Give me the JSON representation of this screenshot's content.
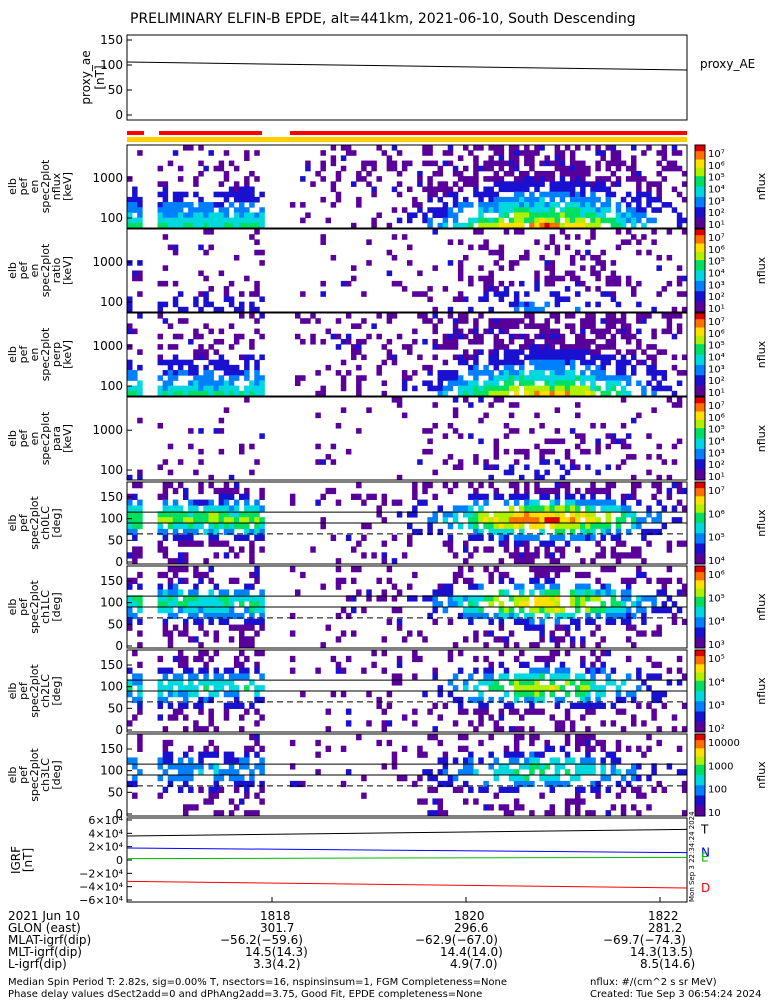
{
  "title": "PRELIMINARY ELFIN-B EPDE, alt=441km, 2021-06-10, South Descending",
  "colors": {
    "background": "#ffffff",
    "axes": "#000000",
    "ae_line": "#000000",
    "bar_red": "#ff0000",
    "bar_yellow": "#ffd000",
    "igrf_T": "#000000",
    "igrf_N": "#0000ff",
    "igrf_E": "#00bb00",
    "igrf_D": "#ff0000"
  },
  "chart_data": [
    {
      "name": "proxy_ae",
      "type": "line",
      "ylabel": [
        "proxy_ae",
        "[nT]"
      ],
      "yticks": [
        "150",
        "100",
        "50",
        "0"
      ],
      "ylim": [
        0,
        150
      ],
      "legend": "proxy_AE",
      "series": [
        {
          "x": [
            0,
            1
          ],
          "y": [
            106,
            90
          ]
        }
      ]
    },
    {
      "name": "epde-en-spec-1",
      "type": "heatmap",
      "ylabel": [
        "elb",
        "pef",
        "en",
        "spec2plot",
        "nflux",
        "[keV]"
      ],
      "yticks": [
        "1000",
        "100"
      ],
      "log_y": true,
      "colorbar": {
        "label": "nflux",
        "ticks": [
          "10⁷",
          "10⁶",
          "10⁵",
          "10⁴",
          "10³",
          "10²",
          "10¹"
        ]
      }
    },
    {
      "name": "epde-en-spec-2",
      "type": "heatmap",
      "ylabel": [
        "elb",
        "pef",
        "en",
        "spec2plot",
        "ratio",
        "[keV]"
      ],
      "yticks": [
        "1000",
        "100"
      ],
      "log_y": true,
      "colorbar": {
        "label": "nflux",
        "ticks": [
          "10⁷",
          "10⁶",
          "10⁵",
          "10⁴",
          "10³",
          "10²",
          "10¹"
        ]
      }
    },
    {
      "name": "epde-en-spec-3",
      "type": "heatmap",
      "ylabel": [
        "elb",
        "pef",
        "en",
        "spec2plot",
        "perp",
        "[keV]"
      ],
      "yticks": [
        "1000",
        "100"
      ],
      "log_y": true,
      "colorbar": {
        "label": "nflux",
        "ticks": [
          "10⁷",
          "10⁶",
          "10⁵",
          "10⁴",
          "10³",
          "10²",
          "10¹"
        ]
      }
    },
    {
      "name": "epde-en-spec-4",
      "type": "heatmap",
      "ylabel": [
        "elb",
        "pef",
        "en",
        "spec2plot",
        "para",
        "[keV]"
      ],
      "yticks": [
        "1000",
        "100"
      ],
      "log_y": true,
      "colorbar": {
        "label": "nflux",
        "ticks": [
          "10⁷",
          "10⁶",
          "10⁵",
          "10⁴",
          "10³",
          "10²",
          "10¹"
        ]
      }
    },
    {
      "name": "epde-pa-ch0",
      "type": "heatmap",
      "ylabel": [
        "elb",
        "pef",
        "spec2plot",
        "ch0LC",
        "[deg]"
      ],
      "yticks": [
        "150",
        "100",
        "50",
        "0"
      ],
      "ylim": [
        0,
        180
      ],
      "colorbar": {
        "label": "nflux",
        "ticks": [
          "10⁷",
          "10⁶",
          "10⁵",
          "10⁴"
        ]
      }
    },
    {
      "name": "epde-pa-ch1",
      "type": "heatmap",
      "ylabel": [
        "elb",
        "pef",
        "spec2plot",
        "ch1LC",
        "[deg]"
      ],
      "yticks": [
        "150",
        "100",
        "50",
        "0"
      ],
      "ylim": [
        0,
        180
      ],
      "colorbar": {
        "label": "nflux",
        "ticks": [
          "10⁶",
          "10⁵",
          "10⁴",
          "10³"
        ]
      }
    },
    {
      "name": "epde-pa-ch2",
      "type": "heatmap",
      "ylabel": [
        "elb",
        "pef",
        "spec2plot",
        "ch2LC",
        "[deg]"
      ],
      "yticks": [
        "150",
        "100",
        "50",
        "0"
      ],
      "ylim": [
        0,
        180
      ],
      "colorbar": {
        "label": "nflux",
        "ticks": [
          "10⁵",
          "10⁴",
          "10³",
          "10²"
        ]
      }
    },
    {
      "name": "epde-pa-ch3",
      "type": "heatmap",
      "ylabel": [
        "elb",
        "pef",
        "spec2plot",
        "ch3LC",
        "[deg]"
      ],
      "yticks": [
        "150",
        "100",
        "50",
        "0"
      ],
      "ylim": [
        0,
        180
      ],
      "colorbar": {
        "label": "nflux",
        "ticks": [
          "10000",
          "1000",
          "100",
          "10"
        ]
      }
    },
    {
      "name": "igrf",
      "type": "line",
      "ylabel": [
        "IGRF",
        "[nT]"
      ],
      "yticks": [
        "6×10⁴",
        "4×10⁴",
        "2×10⁴",
        "0",
        "−2×10⁴",
        "−4×10⁴",
        "−6×10⁴"
      ],
      "ylim": [
        -60000,
        60000
      ],
      "series": [
        {
          "name": "T",
          "x": [
            0,
            1
          ],
          "y": [
            36000,
            46000
          ]
        },
        {
          "name": "N",
          "x": [
            0,
            1
          ],
          "y": [
            18000,
            11000
          ]
        },
        {
          "name": "E",
          "x": [
            0,
            1
          ],
          "y": [
            2000,
            4000
          ]
        },
        {
          "name": "D",
          "x": [
            0,
            1
          ],
          "y": [
            -32000,
            -42000
          ]
        }
      ],
      "side_text": "Mon Sep  3 22:34:24 2024"
    }
  ],
  "x_axis": {
    "ticks": [
      "1818",
      "1820",
      "1822"
    ],
    "rows": [
      {
        "label": "2021 Jun 10",
        "values": [
          "",
          "",
          ""
        ]
      },
      {
        "label": "GLON (east)",
        "values": [
          "301.7",
          "296.6",
          "281.2"
        ]
      },
      {
        "label": "MLAT-igrf(dip)",
        "values": [
          "−56.2(−59.6)",
          "−62.9(−67.0)",
          "−69.7(−74.3)"
        ]
      },
      {
        "label": "MLT-igrf(dip)",
        "values": [
          "14.5(14.3)",
          "14.4(14.0)",
          "14.3(13.5)"
        ]
      },
      {
        "label": "L-igrf(dip)",
        "values": [
          "3.3(4.2)",
          "4.9(7.0)",
          "8.5(14.6)"
        ]
      }
    ]
  },
  "footer": {
    "line1": "Median Spin Period T: 2.82s, sig=0.00% T, nsectors=16, nspinsinsum=1, FGM Completeness=None",
    "line2": "Phase delay values dSect2add=0 and dPhAng2add=3.75, Good Fit, EPDE completeness=None",
    "units": "nflux: #/(cm^2 s sr MeV)",
    "created": "Created: Tue Sep  3 06:54:24 2024"
  }
}
